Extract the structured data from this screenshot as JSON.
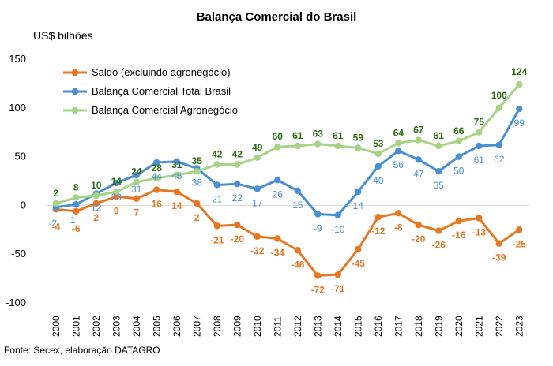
{
  "chart_data": {
    "type": "line",
    "title": "Balança Comercial do Brasil",
    "ylabel": "US$ bilhões",
    "source": "Fonte: Secex, elaboração DATAGRO",
    "ylim": [
      -100,
      150
    ],
    "yticks": [
      "-100",
      "-50",
      "0",
      "50",
      "100",
      "150"
    ],
    "legend_position": "top-left",
    "grid": false,
    "x": [
      "2000",
      "2001",
      "2002",
      "2003",
      "2004",
      "2005",
      "2006",
      "2007",
      "2008",
      "2009",
      "2010",
      "2011",
      "2012",
      "2013",
      "2014",
      "2015",
      "2016",
      "2017",
      "2018",
      "2019",
      "2020",
      "2021",
      "2022",
      "2023"
    ],
    "series": [
      {
        "name": "Saldo (excluindo agronegócio)",
        "color": "#E87722",
        "values": [
          -4,
          -6,
          2,
          9,
          7,
          16,
          14,
          2,
          -21,
          -20,
          -32,
          -34,
          -46,
          -72,
          -71,
          -45,
          -12,
          -8,
          -20,
          -26,
          -16,
          -13,
          -39,
          -25
        ],
        "labels": [
          "-4",
          "-6",
          "2",
          "9",
          "7",
          "16",
          "14",
          "2",
          "-21",
          "-20",
          "-32",
          "-34",
          "-46",
          "-72",
          "-71",
          "-45",
          "-12",
          "-8",
          "-20",
          "-26",
          "-16",
          "-13",
          "-39",
          "-25"
        ]
      },
      {
        "name": "Balança Comercial Total Brasil",
        "color": "#4A8FD4",
        "values": [
          -2,
          1,
          12,
          23,
          31,
          44,
          45,
          38,
          21,
          22,
          17,
          26,
          15,
          -9,
          -10,
          14,
          40,
          56,
          47,
          35,
          50,
          61,
          62,
          99
        ],
        "labels": [
          "-2",
          "1",
          "12",
          "23",
          "31",
          "44",
          "45",
          "38",
          "21",
          "22",
          "17",
          "26",
          "15",
          "-9",
          "-10",
          "14",
          "40",
          "56",
          "47",
          "35",
          "50",
          "61",
          "62",
          "99"
        ]
      },
      {
        "name": "Balança Comercial Agronegócio",
        "color": "#A6D386",
        "label_color": "#2E6B12",
        "values": [
          2,
          8,
          10,
          14,
          24,
          28,
          31,
          35,
          42,
          42,
          49,
          60,
          61,
          63,
          61,
          59,
          53,
          64,
          67,
          61,
          66,
          75,
          100,
          124
        ],
        "labels": [
          "2",
          "8",
          "10",
          "14",
          "24",
          "28",
          "31",
          "35",
          "42",
          "42",
          "49",
          "60",
          "61",
          "63",
          "61",
          "59",
          "53",
          "64",
          "67",
          "61",
          "66",
          "75",
          "100",
          "124"
        ]
      }
    ]
  }
}
